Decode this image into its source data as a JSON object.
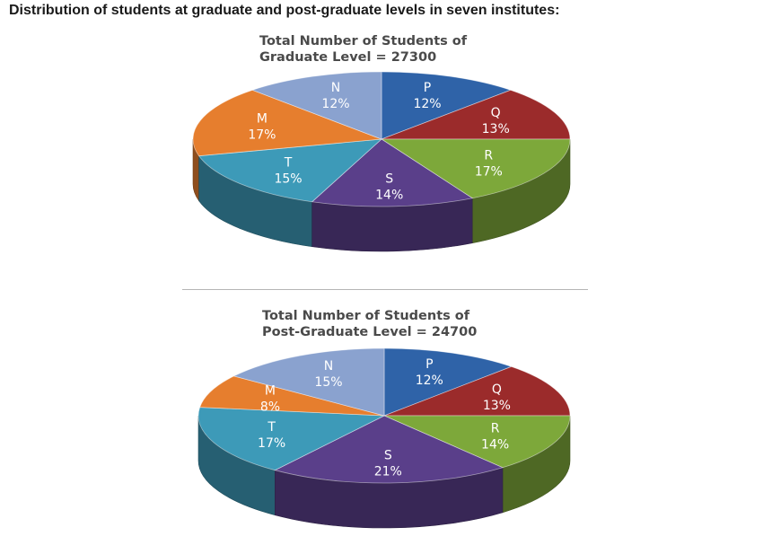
{
  "page": {
    "title": "Distribution of students at graduate and post-graduate levels in seven institutes:"
  },
  "chart_data": [
    {
      "type": "pie",
      "title_lines": [
        "Total Number of Students of",
        "Graduate Level = 27300"
      ],
      "categories": [
        "P",
        "Q",
        "R",
        "S",
        "T",
        "M",
        "N"
      ],
      "values": [
        12,
        13,
        17,
        14,
        15,
        17,
        12
      ],
      "labels": [
        "12%",
        "13%",
        "17%",
        "14%",
        "15%",
        "17%",
        "12%"
      ],
      "colors": [
        "#2f63a8",
        "#9b2b2b",
        "#7da83a",
        "#5a3f8a",
        "#3d9ab8",
        "#e67e2e",
        "#8aa2cf"
      ]
    },
    {
      "type": "pie",
      "title_lines": [
        "Total Number of Students of",
        "Post-Graduate Level = 24700"
      ],
      "categories": [
        "P",
        "Q",
        "R",
        "S",
        "T",
        "M",
        "N"
      ],
      "values": [
        12,
        13,
        14,
        21,
        17,
        8,
        15
      ],
      "labels": [
        "12%",
        "13%",
        "14%",
        "21%",
        "17%",
        "8%",
        "15%"
      ],
      "colors": [
        "#2f63a8",
        "#9b2b2b",
        "#7da83a",
        "#5a3f8a",
        "#3d9ab8",
        "#e67e2e",
        "#8aa2cf"
      ]
    }
  ]
}
